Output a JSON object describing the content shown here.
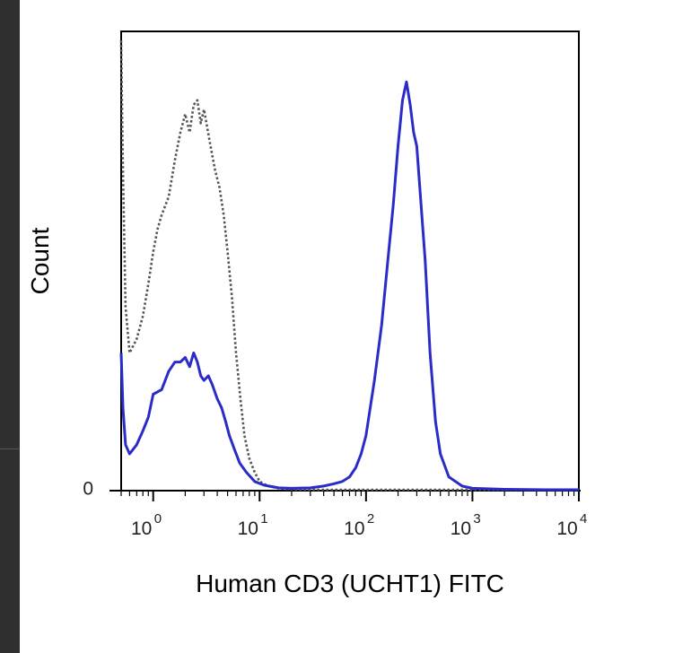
{
  "chart_data": {
    "type": "line",
    "xlabel": "Human CD3 (UCHT1) FITC",
    "ylabel": "Count",
    "xscale": "log",
    "xlim": [
      0.5,
      10000
    ],
    "ylim": [
      0,
      100
    ],
    "y_tick_labels": [
      "0"
    ],
    "x_tick_labels": [
      {
        "base": "10",
        "exp": "0",
        "value": 1
      },
      {
        "base": "10",
        "exp": "1",
        "value": 10
      },
      {
        "base": "10",
        "exp": "2",
        "value": 100
      },
      {
        "base": "10",
        "exp": "3",
        "value": 1000
      },
      {
        "base": "10",
        "exp": "4",
        "value": 10000
      }
    ],
    "series": [
      {
        "style": "dotted",
        "color": "#555555",
        "x": [
          0.5,
          0.52,
          0.55,
          0.6,
          0.7,
          0.8,
          0.9,
          1.0,
          1.1,
          1.2,
          1.4,
          1.6,
          1.8,
          2.0,
          2.2,
          2.4,
          2.6,
          2.8,
          3.0,
          3.4,
          3.8,
          4.2,
          4.6,
          5.0,
          5.5,
          6.0,
          6.6,
          7.2,
          8.0,
          9.0,
          10,
          12,
          15,
          20,
          30,
          50,
          100,
          1000,
          10000
        ],
        "y": [
          98,
          70,
          40,
          30,
          33,
          38,
          45,
          52,
          57,
          60,
          64,
          72,
          78,
          82,
          78,
          84,
          85,
          80,
          83,
          76,
          70,
          66,
          60,
          52,
          42,
          30,
          20,
          12,
          7,
          4,
          2,
          1,
          0.5,
          0.3,
          0.2,
          0.2,
          0.2,
          0.2,
          0.2
        ]
      },
      {
        "style": "solid",
        "color": "#2b2bc8",
        "x": [
          0.5,
          0.52,
          0.55,
          0.6,
          0.7,
          0.8,
          0.9,
          1.0,
          1.2,
          1.4,
          1.6,
          1.8,
          2.0,
          2.2,
          2.4,
          2.6,
          2.8,
          3.0,
          3.3,
          3.6,
          4.0,
          4.4,
          4.8,
          5.2,
          5.8,
          6.5,
          7.5,
          9.0,
          11,
          15,
          20,
          30,
          40,
          50,
          60,
          70,
          80,
          90,
          100,
          120,
          140,
          160,
          180,
          200,
          220,
          240,
          260,
          280,
          300,
          330,
          360,
          400,
          450,
          500,
          600,
          800,
          1000,
          2000,
          5000,
          10000
        ],
        "y": [
          30,
          18,
          10,
          8,
          10,
          13,
          16,
          21,
          22,
          26,
          28,
          28,
          29,
          27,
          30,
          28,
          25,
          24,
          25,
          23,
          20,
          18,
          15,
          12,
          9,
          6,
          4,
          2,
          1.2,
          0.6,
          0.5,
          0.6,
          1,
          1.5,
          2,
          3,
          5,
          8,
          12,
          24,
          36,
          50,
          62,
          75,
          85,
          89,
          84,
          78,
          75,
          62,
          50,
          30,
          15,
          8,
          3,
          1,
          0.5,
          0.3,
          0.2,
          0.2
        ]
      }
    ]
  }
}
